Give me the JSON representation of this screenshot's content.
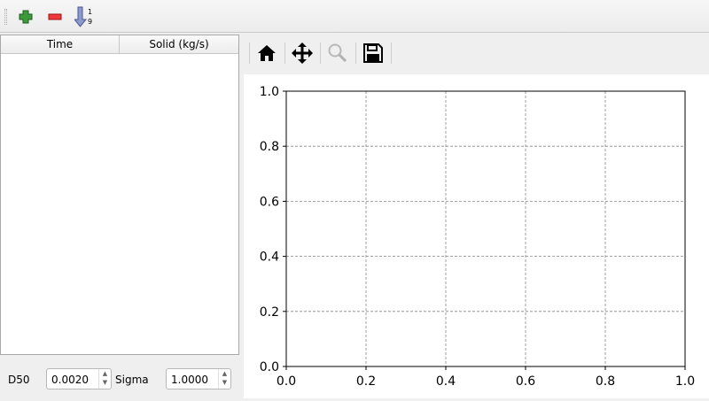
{
  "toolbar": {
    "items": [
      {
        "name": "add-icon"
      },
      {
        "name": "remove-icon"
      },
      {
        "name": "sort-icon",
        "label_top": "1",
        "label_bottom": "9"
      }
    ]
  },
  "table": {
    "columns": [
      "Time",
      "Solid (kg/s)"
    ],
    "rows": []
  },
  "params": {
    "d50_label": "D50",
    "d50_value": "0.0020",
    "sigma_label": "Sigma",
    "sigma_value": "1.0000"
  },
  "nav": {
    "items": [
      "home-icon",
      "pan-icon",
      "zoom-icon",
      "save-icon"
    ]
  },
  "chart_data": {
    "type": "line",
    "series": [],
    "xlim": [
      0,
      1
    ],
    "ylim": [
      0,
      1
    ],
    "xticks": [
      "0.0",
      "0.2",
      "0.4",
      "0.6",
      "0.8",
      "1.0"
    ],
    "yticks": [
      "0.0",
      "0.2",
      "0.4",
      "0.6",
      "0.8",
      "1.0"
    ],
    "grid": true,
    "title": "",
    "xlabel": "",
    "ylabel": ""
  }
}
